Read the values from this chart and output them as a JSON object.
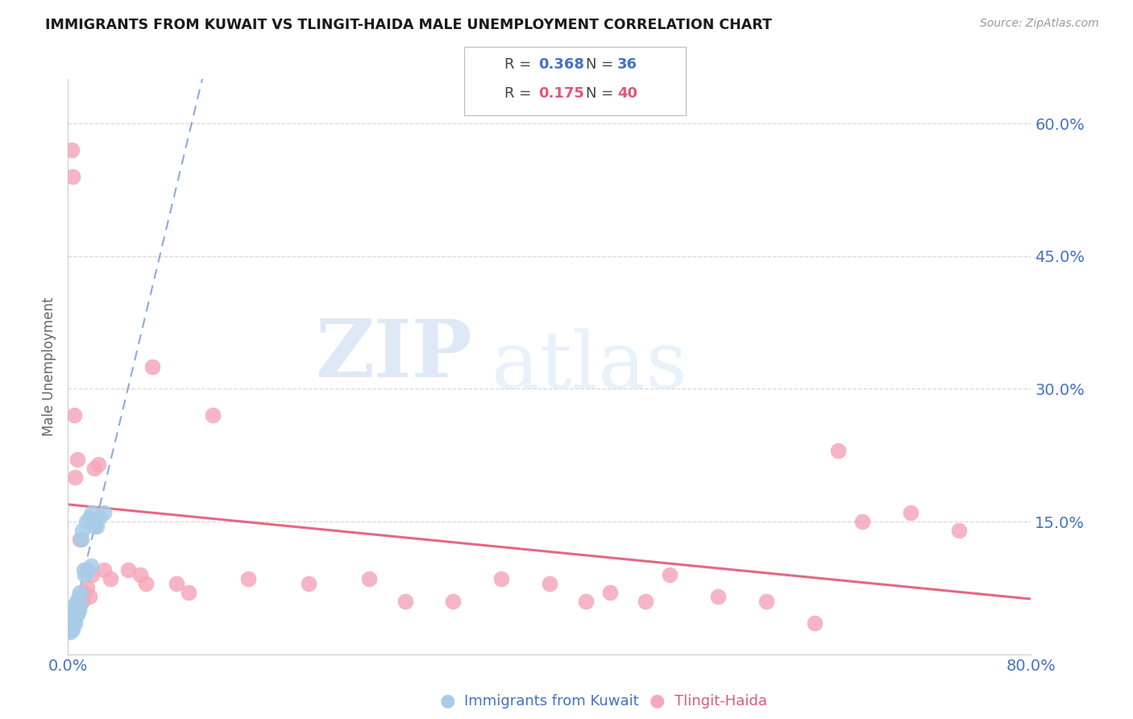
{
  "title": "IMMIGRANTS FROM KUWAIT VS TLINGIT-HAIDA MALE UNEMPLOYMENT CORRELATION CHART",
  "source": "Source: ZipAtlas.com",
  "ylabel": "Male Unemployment",
  "y_tick_labels_right": [
    "60.0%",
    "45.0%",
    "30.0%",
    "15.0%"
  ],
  "y_tick_positions": [
    0.6,
    0.45,
    0.3,
    0.15
  ],
  "xlim": [
    0.0,
    0.8
  ],
  "ylim": [
    0.0,
    0.65
  ],
  "color_blue": "#a8cce8",
  "color_pink": "#f5a8bc",
  "color_trend_blue": "#4472c4",
  "color_trend_pink": "#e05878",
  "label_kuwait": "Immigrants from Kuwait",
  "label_tlingit": "Tlingit-Haida",
  "kuwait_x": [
    0.001,
    0.002,
    0.002,
    0.003,
    0.003,
    0.003,
    0.004,
    0.004,
    0.004,
    0.005,
    0.005,
    0.005,
    0.006,
    0.006,
    0.006,
    0.007,
    0.007,
    0.008,
    0.008,
    0.009,
    0.009,
    0.01,
    0.01,
    0.011,
    0.012,
    0.013,
    0.014,
    0.015,
    0.016,
    0.018,
    0.019,
    0.02,
    0.022,
    0.024,
    0.026,
    0.03
  ],
  "kuwait_y": [
    0.03,
    0.04,
    0.025,
    0.045,
    0.035,
    0.03,
    0.04,
    0.035,
    0.028,
    0.055,
    0.045,
    0.038,
    0.05,
    0.042,
    0.035,
    0.06,
    0.048,
    0.055,
    0.045,
    0.065,
    0.05,
    0.07,
    0.055,
    0.13,
    0.14,
    0.095,
    0.09,
    0.15,
    0.095,
    0.155,
    0.1,
    0.16,
    0.145,
    0.145,
    0.155,
    0.16
  ],
  "tlingit_x": [
    0.003,
    0.004,
    0.005,
    0.006,
    0.008,
    0.01,
    0.012,
    0.014,
    0.016,
    0.018,
    0.02,
    0.022,
    0.025,
    0.03,
    0.035,
    0.05,
    0.06,
    0.065,
    0.07,
    0.09,
    0.1,
    0.12,
    0.15,
    0.2,
    0.25,
    0.28,
    0.32,
    0.36,
    0.4,
    0.43,
    0.45,
    0.48,
    0.5,
    0.54,
    0.58,
    0.62,
    0.64,
    0.66,
    0.7,
    0.74
  ],
  "tlingit_y": [
    0.57,
    0.54,
    0.27,
    0.2,
    0.22,
    0.13,
    0.06,
    0.07,
    0.075,
    0.065,
    0.09,
    0.21,
    0.215,
    0.095,
    0.085,
    0.095,
    0.09,
    0.08,
    0.325,
    0.08,
    0.07,
    0.27,
    0.085,
    0.08,
    0.085,
    0.06,
    0.06,
    0.085,
    0.08,
    0.06,
    0.07,
    0.06,
    0.09,
    0.065,
    0.06,
    0.035,
    0.23,
    0.15,
    0.16,
    0.14
  ],
  "watermark_zip": "ZIP",
  "watermark_atlas": "atlas",
  "background_color": "#ffffff",
  "grid_color": "#d8d8d8",
  "spine_color": "#cccccc"
}
